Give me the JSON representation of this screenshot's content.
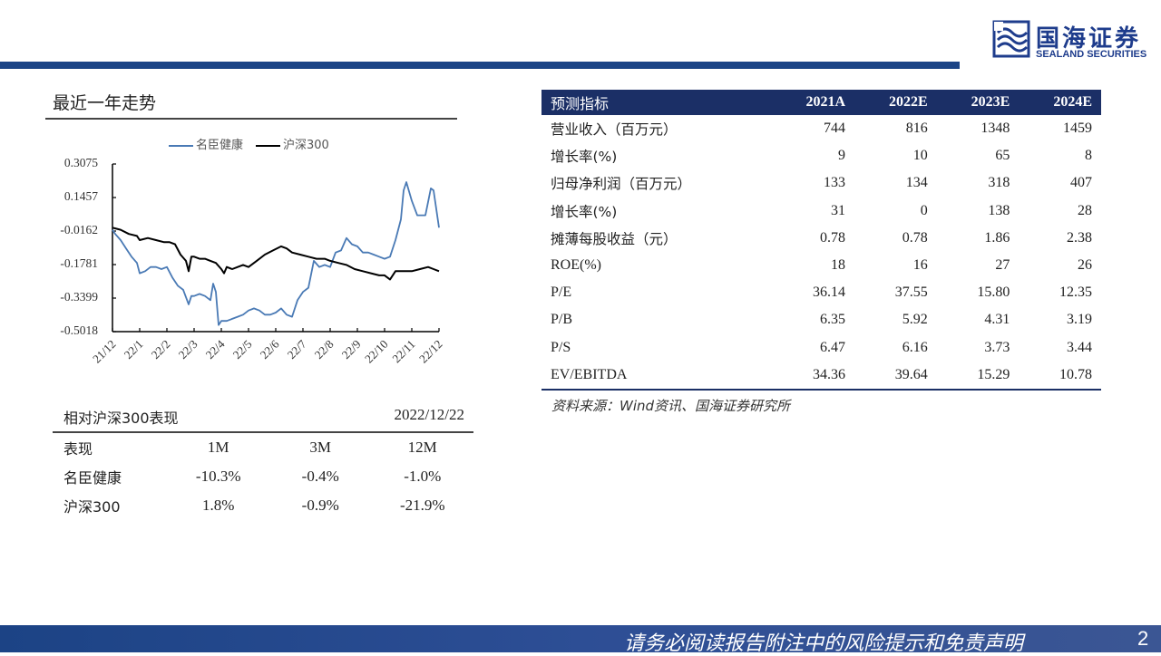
{
  "header": {
    "logo_cn": "国海证券",
    "logo_en": "SEALAND SECURITIES",
    "brand_color": "#1b4486"
  },
  "trend": {
    "title": "最近一年走势",
    "legend": [
      {
        "label": "名臣健康",
        "color": "#4a7ab5"
      },
      {
        "label": "沪深300",
        "color": "#000000"
      }
    ]
  },
  "chart_data": {
    "type": "line",
    "title": "最近一年走势",
    "xlabel": "",
    "ylabel": "",
    "ylim": [
      -0.5018,
      0.3075
    ],
    "yticks": [
      "0.3075",
      "0.1457",
      "-0.0162",
      "-0.1781",
      "-0.3399",
      "-0.5018"
    ],
    "categories": [
      "21/12",
      "22/1",
      "22/2",
      "22/3",
      "22/4",
      "22/5",
      "22/6",
      "22/7",
      "22/8",
      "22/9",
      "22/10",
      "22/11",
      "22/12"
    ],
    "grid": false,
    "legend_position": "top",
    "series": [
      {
        "name": "名臣健康",
        "color": "#4a7ab5",
        "x": [
          0,
          0.1,
          0.3,
          0.5,
          0.7,
          0.9,
          1.0,
          1.2,
          1.4,
          1.6,
          1.8,
          2.0,
          2.2,
          2.4,
          2.6,
          2.8,
          2.9,
          3.0,
          3.2,
          3.4,
          3.6,
          3.7,
          3.8,
          3.9,
          4.0,
          4.1,
          4.2,
          4.4,
          4.6,
          4.8,
          5.0,
          5.2,
          5.4,
          5.6,
          5.8,
          6.0,
          6.2,
          6.4,
          6.6,
          6.8,
          7.0,
          7.2,
          7.4,
          7.6,
          7.8,
          8.0,
          8.2,
          8.4,
          8.6,
          8.8,
          9.0,
          9.2,
          9.4,
          9.6,
          9.8,
          10.0,
          10.2,
          10.4,
          10.6,
          10.7,
          10.8,
          11.0,
          11.2,
          11.4,
          11.5,
          11.7,
          11.8,
          12.0
        ],
        "values": [
          -0.01,
          -0.03,
          -0.06,
          -0.1,
          -0.14,
          -0.17,
          -0.22,
          -0.21,
          -0.19,
          -0.19,
          -0.2,
          -0.19,
          -0.24,
          -0.28,
          -0.3,
          -0.37,
          -0.33,
          -0.33,
          -0.32,
          -0.33,
          -0.35,
          -0.27,
          -0.31,
          -0.47,
          -0.45,
          -0.45,
          -0.45,
          -0.44,
          -0.43,
          -0.42,
          -0.4,
          -0.39,
          -0.4,
          -0.42,
          -0.42,
          -0.41,
          -0.39,
          -0.42,
          -0.43,
          -0.35,
          -0.31,
          -0.29,
          -0.16,
          -0.19,
          -0.18,
          -0.19,
          -0.12,
          -0.11,
          -0.05,
          -0.08,
          -0.09,
          -0.12,
          -0.12,
          -0.13,
          -0.14,
          -0.15,
          -0.14,
          -0.06,
          0.04,
          0.18,
          0.22,
          0.13,
          0.06,
          0.06,
          0.06,
          0.19,
          0.18,
          0.0
        ]
      },
      {
        "name": "沪深300",
        "color": "#000000",
        "x": [
          0,
          0.3,
          0.6,
          0.9,
          1.0,
          1.3,
          1.6,
          1.9,
          2.1,
          2.3,
          2.5,
          2.7,
          2.8,
          2.9,
          3.0,
          3.2,
          3.4,
          3.6,
          3.8,
          4.0,
          4.1,
          4.2,
          4.4,
          4.6,
          4.8,
          5.0,
          5.3,
          5.6,
          5.9,
          6.2,
          6.4,
          6.6,
          6.9,
          7.2,
          7.5,
          7.8,
          8.0,
          8.3,
          8.6,
          8.9,
          9.2,
          9.5,
          9.8,
          10.0,
          10.2,
          10.4,
          10.6,
          10.8,
          11.0,
          11.3,
          11.6,
          11.8,
          12.0
        ],
        "values": [
          0.0,
          -0.01,
          -0.03,
          -0.04,
          -0.06,
          -0.05,
          -0.06,
          -0.07,
          -0.07,
          -0.08,
          -0.13,
          -0.16,
          -0.21,
          -0.14,
          -0.14,
          -0.15,
          -0.15,
          -0.16,
          -0.17,
          -0.2,
          -0.22,
          -0.19,
          -0.2,
          -0.19,
          -0.18,
          -0.19,
          -0.16,
          -0.13,
          -0.11,
          -0.09,
          -0.1,
          -0.12,
          -0.13,
          -0.14,
          -0.15,
          -0.15,
          -0.16,
          -0.17,
          -0.18,
          -0.2,
          -0.21,
          -0.22,
          -0.23,
          -0.23,
          -0.25,
          -0.21,
          -0.21,
          -0.21,
          -0.21,
          -0.2,
          -0.19,
          -0.2,
          -0.21
        ]
      }
    ]
  },
  "performance": {
    "title": "相对沪深300表现",
    "date": "2022/12/22",
    "columns": [
      "表现",
      "1M",
      "3M",
      "12M"
    ],
    "rows": [
      {
        "name": "名臣健康",
        "values": [
          "-10.3%",
          "-0.4%",
          "-1.0%"
        ]
      },
      {
        "name": "沪深300",
        "values": [
          "1.8%",
          "-0.9%",
          "-21.9%"
        ]
      }
    ]
  },
  "forecast": {
    "columns": [
      "预测指标",
      "2021A",
      "2022E",
      "2023E",
      "2024E"
    ],
    "header_color": "#1b2f66",
    "rows": [
      {
        "name": "营业收入（百万元）",
        "values": [
          "744",
          "816",
          "1348",
          "1459"
        ]
      },
      {
        "name": "增长率(%)",
        "values": [
          "9",
          "10",
          "65",
          "8"
        ]
      },
      {
        "name": "归母净利润（百万元）",
        "values": [
          "133",
          "134",
          "318",
          "407"
        ]
      },
      {
        "name": "增长率(%)",
        "values": [
          "31",
          "0",
          "138",
          "28"
        ]
      },
      {
        "name": "摊薄每股收益（元）",
        "values": [
          "0.78",
          "0.78",
          "1.86",
          "2.38"
        ]
      },
      {
        "name": "ROE(%)",
        "values": [
          "18",
          "16",
          "27",
          "26"
        ]
      },
      {
        "name": "P/E",
        "values": [
          "36.14",
          "37.55",
          "15.80",
          "12.35"
        ]
      },
      {
        "name": "P/B",
        "values": [
          "6.35",
          "5.92",
          "4.31",
          "3.19"
        ]
      },
      {
        "name": "P/S",
        "values": [
          "6.47",
          "6.16",
          "3.73",
          "3.44"
        ]
      },
      {
        "name": "EV/EBITDA",
        "values": [
          "34.36",
          "39.64",
          "15.29",
          "10.78"
        ]
      }
    ],
    "source": "资料来源：Wind资讯、国海证券研究所"
  },
  "footer": {
    "disclaimer": "请务必阅读报告附注中的风险提示和免责声明",
    "page_number": "2"
  }
}
